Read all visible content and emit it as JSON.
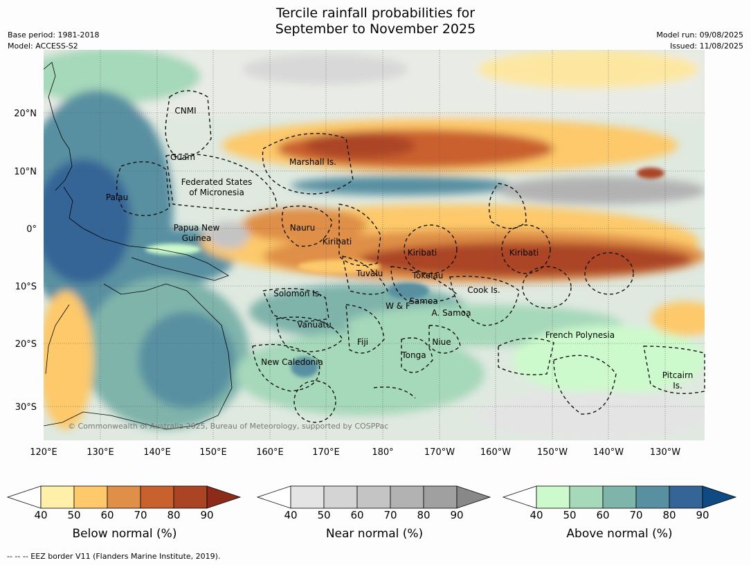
{
  "title_line1": "Tercile rainfall probabilities for",
  "title_line2": "September to November 2025",
  "meta": {
    "base_period": "Base period: 1981-2018",
    "model": "Model: ACCESS-S2",
    "model_run": "Model run: 09/08/2025",
    "issued": "Issued: 11/08/2025"
  },
  "lat_labels": [
    "20°N",
    "10°N",
    "0°",
    "10°S",
    "20°S",
    "30°S"
  ],
  "lon_labels": [
    "120°E",
    "130°E",
    "140°E",
    "150°E",
    "160°E",
    "170°E",
    "180°",
    "170°W",
    "160°W",
    "150°W",
    "140°W",
    "130°W"
  ],
  "regions": [
    {
      "name": "CNMI"
    },
    {
      "name": "Guam"
    },
    {
      "name": "Marshall Is."
    },
    {
      "name": "Federated States"
    },
    {
      "name": "of Micronesia"
    },
    {
      "name": "Palau"
    },
    {
      "name": "Papua New"
    },
    {
      "name": "Guinea"
    },
    {
      "name": "Nauru"
    },
    {
      "name": "Kiribati"
    },
    {
      "name": "Kiribati"
    },
    {
      "name": "Kiribati"
    },
    {
      "name": "Tuvalu"
    },
    {
      "name": "Tokelau"
    },
    {
      "name": "Cook Is."
    },
    {
      "name": "Solomon Is."
    },
    {
      "name": "Samoa"
    },
    {
      "name": "W & F"
    },
    {
      "name": "A. Samoa"
    },
    {
      "name": "Vanuatu"
    },
    {
      "name": "Fiji"
    },
    {
      "name": "Niue"
    },
    {
      "name": "French Polynesia"
    },
    {
      "name": "Tonga"
    },
    {
      "name": "New Caledonia"
    },
    {
      "name": "Pitcairn"
    },
    {
      "name": "Is."
    }
  ],
  "copyright": "© Commonwealth of Australia 2025, Bureau of Meteorology, supported by COSPPac",
  "colorbars": [
    {
      "label": "Below normal (%)",
      "ticks": [
        "40",
        "50",
        "60",
        "70",
        "80",
        "90"
      ],
      "colors": [
        "#fef0a8",
        "#fdc96a",
        "#df8f47",
        "#c9612f",
        "#ab4425",
        "#8d2b1b"
      ]
    },
    {
      "label": "Near normal (%)",
      "ticks": [
        "40",
        "50",
        "60",
        "70",
        "80",
        "90"
      ],
      "colors": [
        "#e4e4e4",
        "#d4d4d4",
        "#c4c4c4",
        "#b2b2b2",
        "#a0a0a0",
        "#888888"
      ]
    },
    {
      "label": "Above normal (%)",
      "ticks": [
        "40",
        "50",
        "60",
        "70",
        "80",
        "90"
      ],
      "colors": [
        "#cdfacc",
        "#a6d8ba",
        "#7fb4ab",
        "#5890a1",
        "#346596",
        "#0f4b82"
      ]
    }
  ],
  "footnote": "--  --  -- EEZ border V11 (Flanders Marine Institute, 2019)."
}
